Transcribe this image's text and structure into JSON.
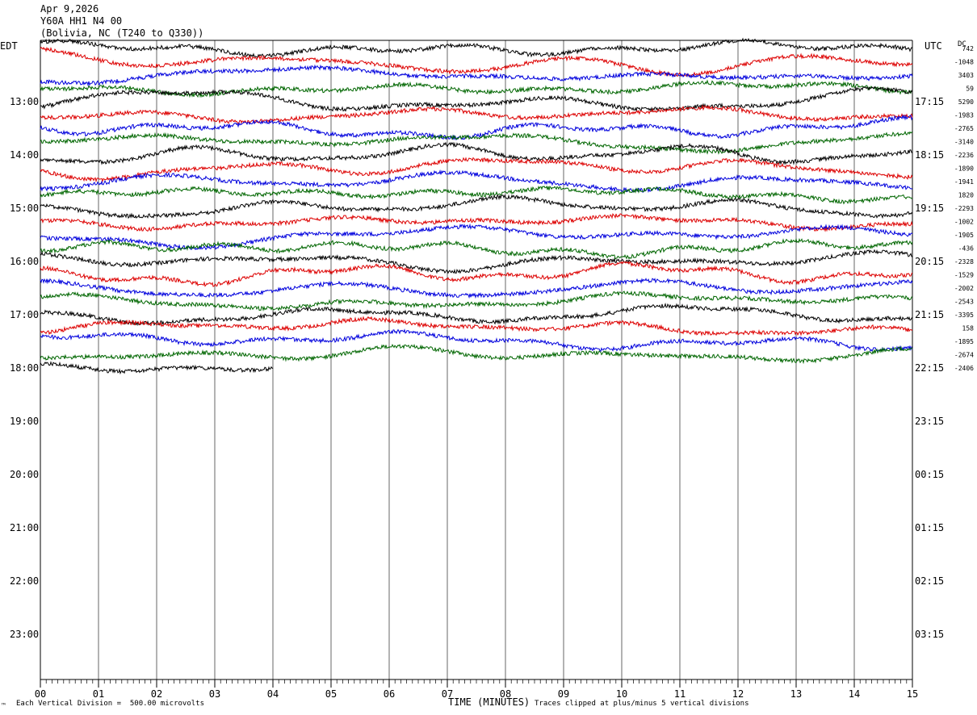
{
  "header": {
    "date": "Apr 9,2026",
    "station": "Y60A HH1 N4 00",
    "location": "(Bolivia, NC (T240 to Q330))"
  },
  "labels": {
    "left_tz": "EDT",
    "right_tz": "UTC",
    "dc": "DC",
    "corner": "™"
  },
  "footer": {
    "scale_note": "Each Vertical Division =  500.00 microvolts",
    "x_title": "TIME (MINUTES)",
    "clip_note": "Traces clipped at plus/minus 5 vertical divisions"
  },
  "colors": {
    "trace_cycle": [
      "#000000",
      "#dd0000",
      "#0000dd",
      "#006600"
    ],
    "grid": "#000000",
    "background": "#ffffff"
  },
  "chart_data": {
    "type": "line",
    "title": "Apr 9,2026 Y60A HH1 N4 00 (Bolivia, NC (T240 to Q330))",
    "xlabel": "TIME (MINUTES)",
    "x_ticks": [
      "00",
      "01",
      "02",
      "03",
      "04",
      "05",
      "06",
      "07",
      "08",
      "09",
      "10",
      "11",
      "12",
      "13",
      "14",
      "15"
    ],
    "xlim": [
      0,
      15
    ],
    "left_hour_labels": [
      "13:00",
      "14:00",
      "15:00",
      "16:00",
      "17:00",
      "18:00",
      "19:00",
      "20:00",
      "21:00",
      "22:00",
      "23:00"
    ],
    "right_hour_labels": [
      "17:15",
      "18:15",
      "19:15",
      "20:15",
      "21:15",
      "22:15",
      "23:15",
      "00:15",
      "01:15",
      "02:15",
      "03:15"
    ],
    "trace_offsets_dc": [
      "742",
      "-1048",
      "3403",
      "59",
      "5290",
      "-1983",
      "-2765",
      "-3140",
      "-2236",
      "-1890",
      "-1941",
      "1820",
      "-2293",
      "-1002",
      "-1905",
      "-436",
      "-2328",
      "-1529",
      "-2002",
      "-2543",
      "-3395",
      "158",
      "-1895",
      "-2674",
      "-2406"
    ],
    "traces_per_hour": 4,
    "minutes_per_trace": 15,
    "trace_count": 25,
    "last_trace_end_minute": 4,
    "grid": true,
    "scale_microvolts_per_division": 500.0,
    "clip_divisions": 5
  }
}
